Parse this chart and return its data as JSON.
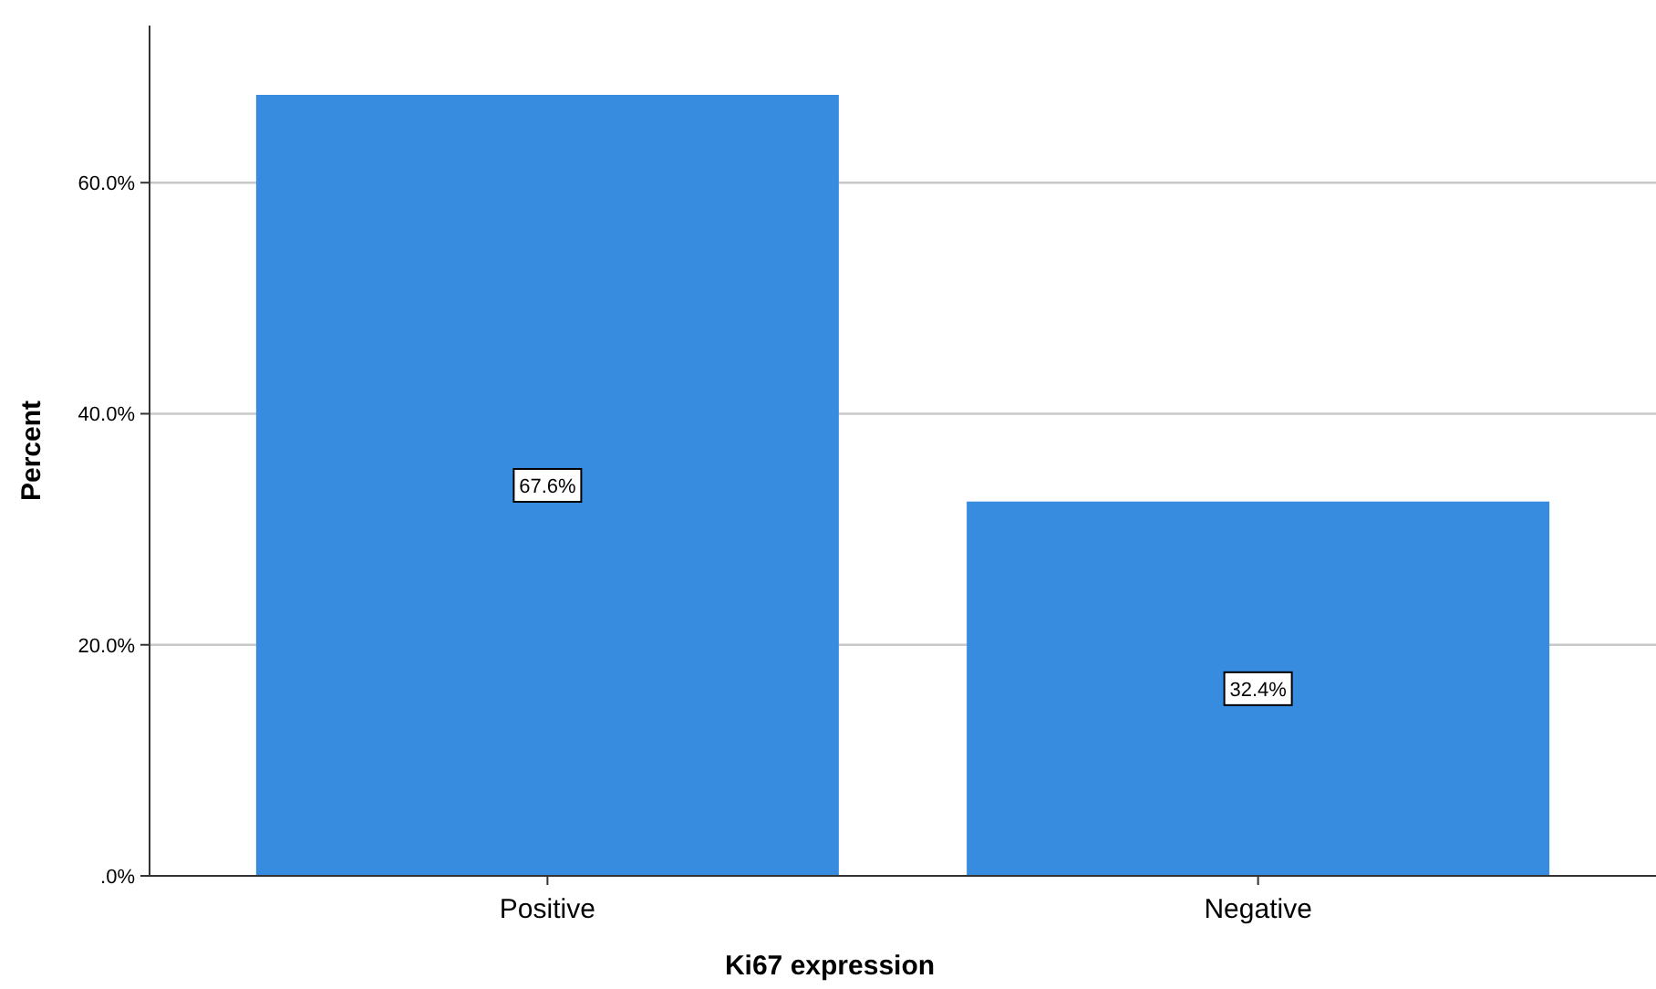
{
  "chart_data": {
    "type": "bar",
    "xlabel": "Ki67 expression",
    "ylabel": "Percent",
    "categories": [
      "Positive",
      "Negative"
    ],
    "values": [
      67.6,
      32.4
    ],
    "color": "#388ce0",
    "value_labels": [
      "67.6%",
      "32.4%"
    ],
    "ylim": [
      0,
      73.6
    ],
    "yticks": [
      {
        "value": 0,
        "label": ".0%"
      },
      {
        "value": 20,
        "label": "20.0%"
      },
      {
        "value": 40,
        "label": "40.0%"
      },
      {
        "value": 60,
        "label": "60.0%"
      }
    ],
    "grid": "y"
  }
}
